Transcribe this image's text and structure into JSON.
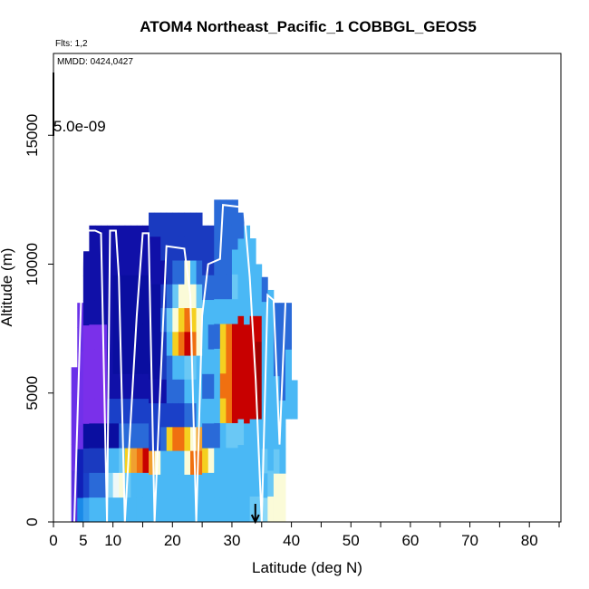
{
  "chart_data": {
    "type": "heatmap",
    "title": "ATOM4 Northeast_Pacific_1 COBBGL_GEOS5",
    "flights_label": "Flts: 1,2",
    "dates_label": "MMDD: 0424,0427",
    "scale_label": "5.0e-09",
    "xlabel": "Latitude (deg N)",
    "ylabel": "Altitude (m)",
    "xlim": [
      0,
      85
    ],
    "ylim": [
      0,
      18000
    ],
    "x_ticks": [
      0,
      5,
      10,
      20,
      30,
      40,
      50,
      60,
      70,
      80
    ],
    "x_minor_ticks": [
      15,
      25,
      35,
      45,
      55,
      65,
      75,
      85
    ],
    "y_ticks": [
      0,
      5000,
      10000,
      15000
    ],
    "arrow_latitude": 35,
    "colors": {
      "purple": "#7a2ee8",
      "dark_blue": "#1a0aa8",
      "blue": "#1e5af0",
      "light_blue": "#4ab8f5",
      "pale": "#fbfbd8",
      "yellow": "#f5d020",
      "orange": "#f07010",
      "red": "#c80000",
      "flight_track": "#ffffff"
    },
    "columns": [
      {
        "lat": 3.5,
        "bottom": 0,
        "top": 6000,
        "levels": [
          "#5a30e0",
          "#5a30e0",
          "#6a30e8",
          "#6a30e8",
          "#6a30e8",
          "#6a30e8"
        ]
      },
      {
        "lat": 4.5,
        "bottom": 0,
        "top": 8500,
        "levels": [
          "#1a8ae8",
          "#1020b8",
          "#1020b8",
          "#6a30e8",
          "#7030ea",
          "#7030ea",
          "#7030ea",
          "#6a30e8",
          "#6a30e8"
        ]
      },
      {
        "lat": 5.5,
        "bottom": 0,
        "top": 10500,
        "levels": [
          "#3aa0f0",
          "#1a40c8",
          "#1a3ac0",
          "#0a0ea0",
          "#7a30ea",
          "#7a30ea",
          "#7a30ea",
          "#7a30ea",
          "#1010a8",
          "#1010a8",
          "#1010a8"
        ]
      },
      {
        "lat": 6.5,
        "bottom": 0,
        "top": 11500,
        "levels": [
          "#4ab8f5",
          "#2a6ad8",
          "#1a3ac0",
          "#0a0ea0",
          "#7a30ea",
          "#7a30ea",
          "#7a30ea",
          "#7a30ea",
          "#1010a8",
          "#1010a8",
          "#1010a8",
          "#1010a8"
        ]
      },
      {
        "lat": 7.5,
        "bottom": 0,
        "top": 11500,
        "levels": [
          "#4ab8f5",
          "#2a6ad8",
          "#1a3ac0",
          "#0a0ea0",
          "#7a30ea",
          "#7a30ea",
          "#7a30ea",
          "#7a30ea",
          "#1010a8",
          "#1010a8",
          "#1010a8",
          "#1010a8"
        ]
      },
      {
        "lat": 8.5,
        "bottom": 0,
        "top": 11500,
        "levels": [
          "#4ab8f5",
          "#2a6ad8",
          "#1a3ac0",
          "#0a0ea0",
          "#7a30ea",
          "#7a30ea",
          "#7a30ea",
          "#7030ea",
          "#1010a8",
          "#1010a8",
          "#1010a8",
          "#1010a8"
        ]
      },
      {
        "lat": 9.5,
        "bottom": 0,
        "top": 11500,
        "levels": [
          "#4ab8f5",
          "#8ad8f8",
          "#4ab8f5",
          "#0a0ea0",
          "#1a40c8",
          "#1010a8",
          "#1010a8",
          "#1010a8",
          "#1010a8",
          "#1010a8",
          "#1010a8",
          "#1010a8"
        ]
      },
      {
        "lat": 10.5,
        "bottom": 0,
        "top": 11500,
        "levels": [
          "#4ab8f5",
          "#eef8f8",
          "#4ab8f5",
          "#0a0ea0",
          "#1a40c8",
          "#1010a8",
          "#0a0ea0",
          "#0a0ea0",
          "#0a0ea0",
          "#0a0ea0",
          "#1010a8",
          "#1010a8"
        ]
      },
      {
        "lat": 11.5,
        "bottom": 0,
        "top": 11500,
        "levels": [
          "#4ab8f5",
          "#fbfbd8",
          "#6ac8f5",
          "#2a6ad8",
          "#1a40c8",
          "#1010a8",
          "#0a0ea0",
          "#0a0ea0",
          "#0a0ea0",
          "#0a0ea0",
          "#1010a8",
          "#1010a8"
        ]
      },
      {
        "lat": 12.5,
        "bottom": 0,
        "top": 11500,
        "levels": [
          "#4ab8f5",
          "#6ac8f5",
          "#f5d020",
          "#2a6ad8",
          "#1a40c8",
          "#1010a8",
          "#0a0ea0",
          "#0a0ea0",
          "#0a0ea0",
          "#0a0ea0",
          "#1010a8",
          "#1010a8"
        ]
      },
      {
        "lat": 13.5,
        "bottom": 0,
        "top": 11500,
        "levels": [
          "#4ab8f5",
          "#4ab8f5",
          "#f0a030",
          "#2a6ad8",
          "#1a40c8",
          "#1010a8",
          "#0a0ea0",
          "#0a0ea0",
          "#0a0ea0",
          "#0a0ea0",
          "#1010a8",
          "#1010a8"
        ]
      },
      {
        "lat": 14.5,
        "bottom": 0,
        "top": 11500,
        "levels": [
          "#4ab8f5",
          "#4ab8f5",
          "#f07010",
          "#2a6ad8",
          "#1a40c8",
          "#1010a8",
          "#0a0ea0",
          "#0a0ea0",
          "#0a0ea0",
          "#0a0ea0",
          "#1010a8",
          "#1010a8"
        ]
      },
      {
        "lat": 15.5,
        "bottom": 0,
        "top": 11500,
        "levels": [
          "#4ab8f5",
          "#4ab8f5",
          "#c80000",
          "#2a6ad8",
          "#1a40c8",
          "#1010a8",
          "#0a0ea0",
          "#0a0ea0",
          "#0a0ea0",
          "#0a0ea0",
          "#1010a8",
          "#1010a8"
        ]
      },
      {
        "lat": 16.5,
        "bottom": 0,
        "top": 12000,
        "levels": [
          "#4ab8f5",
          "#4ab8f5",
          "#f0a030",
          "#1a40c8",
          "#1a40c8",
          "#1010a8",
          "#0a0ea0",
          "#0a0ea0",
          "#0a0ea0",
          "#0a0ea0",
          "#1010a8",
          "#1010a8",
          "#1a3ac0"
        ]
      },
      {
        "lat": 17.5,
        "bottom": 0,
        "top": 12000,
        "levels": [
          "#4ab8f5",
          "#4ab8f5",
          "#fbfbd8",
          "#1a40c8",
          "#1a40c8",
          "#1010a8",
          "#0a0ea0",
          "#0a0ea0",
          "#0a0ea0",
          "#0a0ea0",
          "#1010a8",
          "#1010a8",
          "#1a3ac0"
        ]
      },
      {
        "lat": 18.5,
        "bottom": 0,
        "top": 12000,
        "levels": [
          "#4ab8f5",
          "#4ab8f5",
          "#4ab8f5",
          "#2a6ad8",
          "#1a40c8",
          "#1010a8",
          "#1a3ac0",
          "#1a3ac0",
          "#2a6ad8",
          "#1a3ac0",
          "#1010a8",
          "#1a3ac0",
          "#1a3ac0"
        ]
      },
      {
        "lat": 19.5,
        "bottom": 0,
        "top": 12000,
        "levels": [
          "#4ab8f5",
          "#4ab8f5",
          "#4ab8f5",
          "#f5d020",
          "#1a40c8",
          "#2a6ad8",
          "#2a6ad8",
          "#4ab8f5",
          "#6ac8f5",
          "#2a6ad8",
          "#1a3ac0",
          "#1a3ac0",
          "#1a3ac0"
        ]
      },
      {
        "lat": 20.5,
        "bottom": 0,
        "top": 12000,
        "levels": [
          "#4ab8f5",
          "#4ab8f5",
          "#4ab8f5",
          "#f07010",
          "#1a40c8",
          "#2a6ad8",
          "#4ab8f5",
          "#f5d020",
          "#fbfbd8",
          "#6ac8f5",
          "#2a6ad8",
          "#1a3ac0",
          "#1a3ac0"
        ]
      },
      {
        "lat": 21.5,
        "bottom": 0,
        "top": 12000,
        "levels": [
          "#4ab8f5",
          "#4ab8f5",
          "#4ab8f5",
          "#f07010",
          "#1a40c8",
          "#2a6ad8",
          "#4ab8f5",
          "#f07010",
          "#f5d020",
          "#fbfbd8",
          "#2a6ad8",
          "#1a3ac0",
          "#1a3ac0"
        ]
      },
      {
        "lat": 22.5,
        "bottom": 0,
        "top": 12000,
        "levels": [
          "#4ab8f5",
          "#4ab8f5",
          "#fbfbd8",
          "#f5d020",
          "#2a6ad8",
          "#4ab8f5",
          "#6ac8f5",
          "#c80000",
          "#f07010",
          "#fbfbd8",
          "#fbfbd8",
          "#1a3ac0",
          "#1a3ac0"
        ]
      },
      {
        "lat": 23.5,
        "bottom": 0,
        "top": 12000,
        "levels": [
          "#4ab8f5",
          "#4ab8f5",
          "#f07010",
          "#fbfbd8",
          "#2a6ad8",
          "#4ab8f5",
          "#6ac8f5",
          "#f07010",
          "#f5d020",
          "#fbfbd8",
          "#4ab8f5",
          "#1a3ac0",
          "#1a3ac0"
        ]
      },
      {
        "lat": 24.5,
        "bottom": 0,
        "top": 12000,
        "levels": [
          "#4ab8f5",
          "#4ab8f5",
          "#f07010",
          "#f0a030",
          "#4ab8f5",
          "#4ab8f5",
          "#4ab8f5",
          "#fbfbd8",
          "#fbfbd8",
          "#6ac8f5",
          "#2a6ad8",
          "#1a3ac0",
          "#1a3ac0"
        ]
      },
      {
        "lat": 25.5,
        "bottom": 0,
        "top": 11500,
        "levels": [
          "#4ab8f5",
          "#4ab8f5",
          "#f5d020",
          "#2a6ad8",
          "#4ab8f5",
          "#2a6ad8",
          "#4ab8f5",
          "#4ab8f5",
          "#4ab8f5",
          "#2a6ad8",
          "#1a3ac0",
          "#1a3ac0"
        ]
      },
      {
        "lat": 26.5,
        "bottom": 0,
        "top": 11500,
        "levels": [
          "#4ab8f5",
          "#4ab8f5",
          "#fbfbd8",
          "#2a6ad8",
          "#4ab8f5",
          "#2a6ad8",
          "#4ab8f5",
          "#2a6ad8",
          "#4ab8f5",
          "#2a6ad8",
          "#1a3ac0",
          "#1a3ac0"
        ]
      },
      {
        "lat": 27.5,
        "bottom": 0,
        "top": 12500,
        "levels": [
          "#4ab8f5",
          "#4ab8f5",
          "#4ab8f5",
          "#2a6ad8",
          "#4ab8f5",
          "#4ab8f5",
          "#4ab8f5",
          "#2a6ad8",
          "#4ab8f5",
          "#2a6ad8",
          "#2a6ad8",
          "#2a6ad8",
          "#2a6ad8"
        ]
      },
      {
        "lat": 28.5,
        "bottom": 0,
        "top": 12500,
        "levels": [
          "#4ab8f5",
          "#4ab8f5",
          "#4ab8f5",
          "#4ab8f5",
          "#f5d020",
          "#f07010",
          "#f5d020",
          "#f5d020",
          "#4ab8f5",
          "#2a6ad8",
          "#2a6ad8",
          "#2a6ad8",
          "#2a6ad8"
        ]
      },
      {
        "lat": 29.5,
        "bottom": 0,
        "top": 12500,
        "levels": [
          "#4ab8f5",
          "#4ab8f5",
          "#4ab8f5",
          "#6ac8f5",
          "#f07010",
          "#f07010",
          "#f07010",
          "#f07010",
          "#4ab8f5",
          "#2a6ad8",
          "#2a6ad8",
          "#2a6ad8",
          "#2a6ad8"
        ]
      },
      {
        "lat": 30.5,
        "bottom": 0,
        "top": 12500,
        "levels": [
          "#4ab8f5",
          "#4ab8f5",
          "#4ab8f5",
          "#6ac8f5",
          "#c80000",
          "#c80000",
          "#c80000",
          "#c80000",
          "#4ab8f5",
          "#6ac8f5",
          "#4ab8f5",
          "#2a6ad8",
          "#2a6ad8"
        ]
      },
      {
        "lat": 31.5,
        "bottom": 0,
        "top": 12000,
        "levels": [
          "#4ab8f5",
          "#4ab8f5",
          "#4ab8f5",
          "#6ac8f5",
          "#c80000",
          "#c80000",
          "#c80000",
          "#c80000",
          "#4ab8f5",
          "#4ab8f5",
          "#4ab8f5",
          "#2a6ad8"
        ]
      },
      {
        "lat": 32.5,
        "bottom": 0,
        "top": 11500,
        "levels": [
          "#4ab8f5",
          "#4ab8f5",
          "#4ab8f5",
          "#4ab8f5",
          "#c80000",
          "#c80000",
          "#c80000",
          "#c80000",
          "#4ab8f5",
          "#4ab8f5",
          "#4ab8f5",
          "#4ab8f5"
        ]
      },
      {
        "lat": 33.5,
        "bottom": 0,
        "top": 11000,
        "levels": [
          "#6ac8f5",
          "#4ab8f5",
          "#4ab8f5",
          "#4ab8f5",
          "#c80000",
          "#c80000",
          "#c80000",
          "#c80000",
          "#4ab8f5",
          "#4ab8f5",
          "#4ab8f5"
        ]
      },
      {
        "lat": 34.5,
        "bottom": 0,
        "top": 10000,
        "levels": [
          "#6ac8f5",
          "#4ab8f5",
          "#4ab8f5",
          "#4ab8f5",
          "#a00000",
          "#a00000",
          "#a00000",
          "#c80000",
          "#4ab8f5",
          "#4ab8f5"
        ]
      },
      {
        "lat": 35.5,
        "bottom": 0,
        "top": 9500,
        "levels": [
          "#8ad8f8",
          "#4ab8f5",
          "#6ac8f5",
          "#4ab8f5",
          "#4ab8f5",
          "#4ab8f5",
          "#4ab8f5",
          "#4ab8f5",
          "#4ab8f5",
          "#2a6ad8"
        ]
      },
      {
        "lat": 36.5,
        "bottom": 0,
        "top": 9000,
        "levels": [
          "#fbfbd8",
          "#6ac8f5",
          "#4ab8f5",
          "#4ab8f5",
          "#4ab8f5",
          "#4ab8f5",
          "#4ab8f5",
          "#4ab8f5",
          "#4ab8f5"
        ]
      },
      {
        "lat": 37.5,
        "bottom": 0,
        "top": 8500,
        "levels": [
          "#fbfbd8",
          "#fbfbd8",
          "#6ac8f5",
          "#4ab8f5",
          "#4ab8f5",
          "#4ab8f5",
          "#2a6ad8",
          "#2a6ad8",
          "#2a6ad8"
        ]
      },
      {
        "lat": 38.5,
        "bottom": 0,
        "top": 8500,
        "levels": [
          "#fbfbd8",
          "#fbfbd8",
          "#4ab8f5",
          "#4ab8f5",
          "#4ab8f5",
          "#2a6ad8",
          "#2a6ad8",
          "#2a6ad8",
          "#2a6ad8"
        ]
      },
      {
        "lat": 39.5,
        "bottom": 4000,
        "top": 8500,
        "levels": [
          "#4ab8f5",
          "#4ab8f5",
          "#4ab8f5",
          "#2a6ad8",
          "#2a6ad8"
        ]
      },
      {
        "lat": 40.5,
        "bottom": 4000,
        "top": 5500,
        "levels": [
          "#4ab8f5",
          "#4ab8f5"
        ]
      }
    ],
    "flight_track": [
      [
        3.5,
        0
      ],
      [
        5,
        11300
      ],
      [
        7,
        11300
      ],
      [
        8,
        11200
      ],
      [
        9,
        0
      ],
      [
        9.5,
        11300
      ],
      [
        10.5,
        11300
      ],
      [
        11,
        9500
      ],
      [
        12,
        0
      ],
      [
        14,
        8000
      ],
      [
        15,
        11200
      ],
      [
        16,
        11200
      ],
      [
        17,
        0
      ],
      [
        18,
        5500
      ],
      [
        19,
        10700
      ],
      [
        22,
        10600
      ],
      [
        23,
        8800
      ],
      [
        24,
        0
      ],
      [
        25,
        8000
      ],
      [
        26,
        10000
      ],
      [
        28,
        10200
      ],
      [
        28.5,
        12300
      ],
      [
        32,
        12200
      ],
      [
        33,
        9500
      ],
      [
        34,
        5500
      ],
      [
        35,
        0
      ],
      [
        36,
        8800
      ],
      [
        37,
        8600
      ],
      [
        38,
        3000
      ],
      [
        39,
        8500
      ]
    ]
  }
}
